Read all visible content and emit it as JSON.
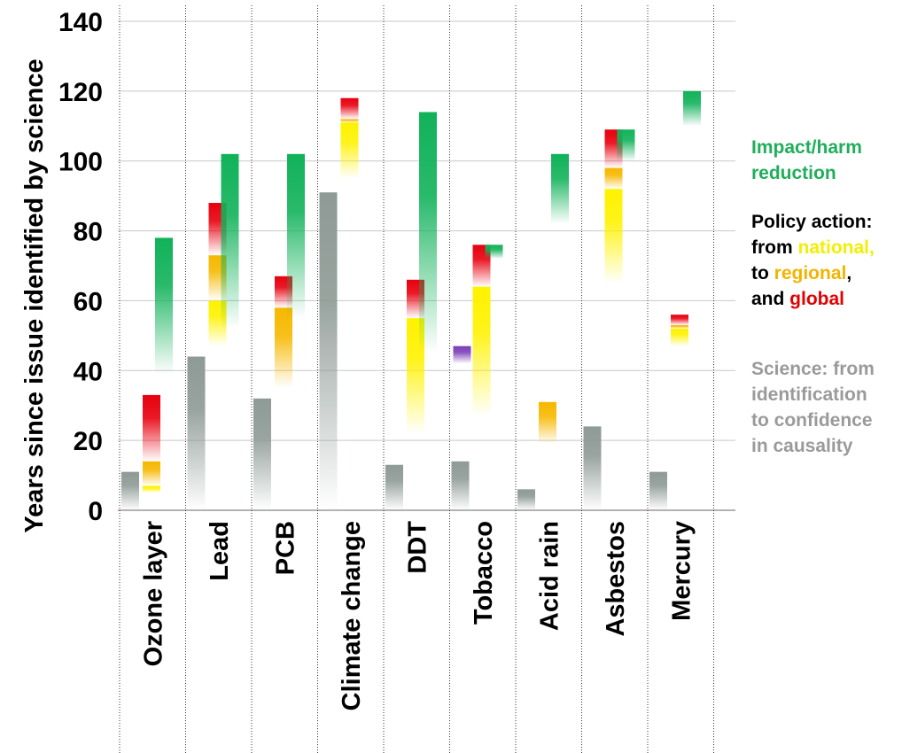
{
  "chart_data": {
    "type": "range-bar",
    "ylabel": "Years since issue identified by science",
    "ylim": [
      0,
      140
    ],
    "yticks": [
      0,
      20,
      40,
      60,
      80,
      100,
      120,
      140
    ],
    "categories": [
      "Ozone layer",
      "Lead",
      "PCB",
      "Climate change",
      "DDT",
      "Tobacco",
      "Acid rain",
      "Asbestos",
      "Mercury"
    ],
    "series": [
      {
        "key": "science",
        "color": "#8e9a95",
        "ranges": [
          [
            0,
            11
          ],
          [
            0,
            44
          ],
          [
            0,
            32
          ],
          [
            0,
            91
          ],
          [
            0,
            13
          ],
          [
            0,
            14
          ],
          [
            0,
            6
          ],
          [
            0,
            24
          ],
          [
            0,
            11
          ]
        ]
      },
      {
        "key": "national",
        "color": "#fff200",
        "ranges": [
          [
            5,
            7
          ],
          [
            47,
            60
          ],
          null,
          [
            95,
            111
          ],
          [
            22,
            55
          ],
          [
            27,
            64
          ],
          null,
          [
            65,
            92
          ],
          [
            47,
            52
          ]
        ]
      },
      {
        "key": "regional",
        "color": "#f6b800",
        "ranges": [
          [
            7,
            14
          ],
          [
            60,
            73
          ],
          [
            35,
            58
          ],
          [
            111,
            112
          ],
          null,
          null,
          [
            19,
            31
          ],
          [
            92,
            98
          ],
          [
            52,
            53
          ]
        ]
      },
      {
        "key": "global",
        "color": "#e8000e",
        "ranges": [
          [
            14,
            33
          ],
          [
            73,
            88
          ],
          [
            58,
            67
          ],
          [
            112,
            118
          ],
          [
            55,
            66
          ],
          [
            64,
            76
          ],
          null,
          [
            98,
            109
          ],
          [
            53,
            56
          ]
        ]
      },
      {
        "key": "other",
        "color": "#7b3fb8",
        "ranges": [
          null,
          null,
          null,
          null,
          null,
          [
            42,
            47
          ],
          null,
          null,
          null
        ]
      },
      {
        "key": "impact",
        "color": "#11b25a",
        "ranges": [
          [
            39,
            78
          ],
          [
            52,
            102
          ],
          [
            55,
            102
          ],
          null,
          [
            45,
            114
          ],
          [
            72,
            76
          ],
          [
            82,
            102
          ],
          [
            100,
            109
          ],
          [
            110,
            120
          ]
        ]
      }
    ]
  },
  "legend": {
    "impact_line1": "Impact/harm",
    "impact_line2": "reduction",
    "policy_line1": "Policy action:",
    "policy_from": "from ",
    "policy_national": "national,",
    "policy_to": "to ",
    "policy_regional": "regional",
    "policy_comma": ",",
    "policy_and": "and ",
    "policy_global": "global",
    "science_line1": "Science: from",
    "science_line2": "identification",
    "science_line3": "to confidence",
    "science_line4": "in causality"
  }
}
